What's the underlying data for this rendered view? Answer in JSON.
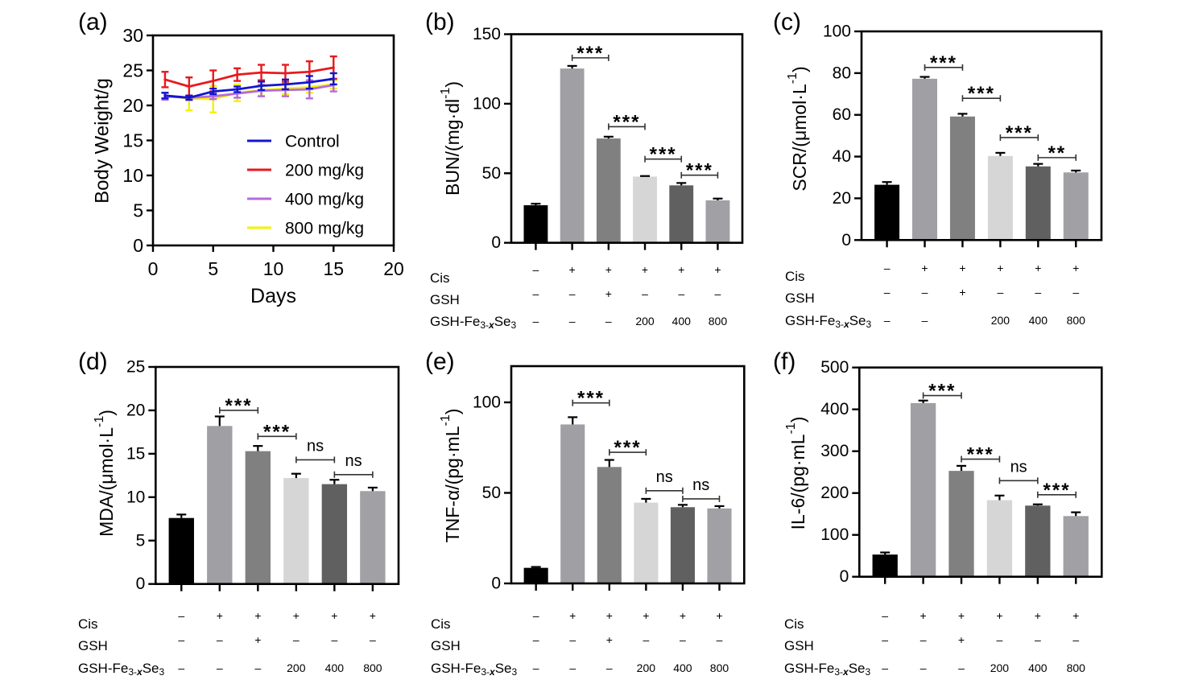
{
  "chart_data": [
    {
      "id": "a",
      "panel_label": "(a)",
      "type": "line",
      "title": "",
      "xlabel": "Days",
      "ylabel": "Body Weight/g",
      "xlim": [
        0,
        20
      ],
      "ylim": [
        0,
        30
      ],
      "xticks": [
        "0",
        "5",
        "10",
        "15",
        "20"
      ],
      "yticks": [
        "0",
        "5",
        "10",
        "15",
        "20",
        "25",
        "30"
      ],
      "grid": false,
      "legend": "center-right",
      "x": [
        1,
        3,
        5,
        7,
        9,
        11,
        13,
        15
      ],
      "series": [
        {
          "name": "Control",
          "color": "#1414d2",
          "values": [
            21.4,
            21.1,
            22.0,
            22.3,
            22.8,
            23.0,
            23.3,
            23.8
          ],
          "errors": [
            0.4,
            0.3,
            0.4,
            0.4,
            0.6,
            0.7,
            0.9,
            0.8
          ]
        },
        {
          "name": "200 mg/kg",
          "color": "#e8191f",
          "values": [
            23.7,
            22.7,
            23.5,
            24.4,
            24.7,
            24.6,
            24.8,
            25.4
          ],
          "errors": [
            1.1,
            1.3,
            1.5,
            0.9,
            1.1,
            1.2,
            1.5,
            1.6
          ]
        },
        {
          "name": "400 mg/kg",
          "color": "#b56bdb",
          "values": [
            21.3,
            21.1,
            21.3,
            21.7,
            22.1,
            22.2,
            22.3,
            22.9
          ],
          "errors": [
            0.5,
            0.3,
            0.4,
            0.6,
            0.8,
            0.9,
            1.3,
            0.9
          ]
        },
        {
          "name": "800 mg/kg",
          "color": "#f2f200",
          "values": [
            21.4,
            21.0,
            20.9,
            21.8,
            22.2,
            22.4,
            22.6,
            23.0
          ],
          "errors": [
            0.4,
            1.7,
            1.9,
            1.2,
            0.8,
            0.8,
            0.8,
            0.6
          ]
        }
      ]
    },
    {
      "id": "b",
      "panel_label": "(b)",
      "type": "bar",
      "ylabel": [
        {
          "t": "BUN/(mg·dl"
        },
        {
          "t": "-1",
          "sup": true
        },
        {
          "t": ")"
        }
      ],
      "ylim": [
        0,
        150
      ],
      "yticks": [
        "0",
        "50",
        "100",
        "150"
      ],
      "categories": [
        "–/–/–",
        "+/–/–",
        "+/+/–",
        "+/–/200",
        "+/–/400",
        "+/–/800"
      ],
      "values": [
        27.0,
        125.3,
        75.0,
        47.6,
        41.3,
        30.5
      ],
      "errors": [
        1.1,
        1.9,
        1.3,
        0.4,
        1.7,
        1.3
      ],
      "colors": [
        "#000000",
        "#9f9fa4",
        "#808080",
        "#d6d6d6",
        "#606060",
        "#a0a0a5"
      ],
      "significance": [
        {
          "from": 1,
          "to": 2,
          "y": 133,
          "label": "***"
        },
        {
          "from": 2,
          "to": 3,
          "y": 83.5,
          "label": "***"
        },
        {
          "from": 3,
          "to": 4,
          "y": 60.2,
          "label": "***"
        },
        {
          "from": 4,
          "to": 5,
          "y": 48.6,
          "label": "***"
        }
      ],
      "conditions": [
        {
          "label": [
            {
              "t": "Cis"
            }
          ],
          "values": [
            "–",
            "+",
            "+",
            "+",
            "+",
            "+"
          ]
        },
        {
          "label": [
            {
              "t": "GSH"
            }
          ],
          "values": [
            "–",
            "–",
            "+",
            "–",
            "–",
            "–"
          ]
        },
        {
          "label": [
            {
              "t": "GSH-Fe"
            },
            {
              "t": "3-",
              "sub": true
            },
            {
              "t": "x",
              "sub": true,
              "em": true
            },
            {
              "t": "Se"
            },
            {
              "t": "3",
              "sub": true
            }
          ],
          "values": [
            "–",
            "–",
            "–",
            "200",
            "400",
            "800"
          ]
        }
      ]
    },
    {
      "id": "c",
      "panel_label": "(c)",
      "type": "bar",
      "ylabel": [
        {
          "t": "SCR/(μmol·L"
        },
        {
          "t": "-1",
          "sup": true
        },
        {
          "t": ")"
        }
      ],
      "ylim": [
        0,
        100
      ],
      "yticks": [
        "0",
        "20",
        "40",
        "60",
        "80",
        "100"
      ],
      "categories": [
        "–/–/–",
        "+/–/–",
        "+/+/",
        "+/–/200",
        "+/–/400",
        "+/–/800"
      ],
      "values": [
        26.5,
        77.3,
        59.2,
        40.3,
        35.3,
        32.4
      ],
      "errors": [
        1.3,
        0.9,
        1.3,
        1.5,
        1.2,
        0.9
      ],
      "colors": [
        "#000000",
        "#9f9fa4",
        "#808080",
        "#d6d6d6",
        "#606060",
        "#a0a0a5"
      ],
      "significance": [
        {
          "from": 1,
          "to": 2,
          "y": 82.7,
          "label": "***"
        },
        {
          "from": 2,
          "to": 3,
          "y": 67.9,
          "label": "***"
        },
        {
          "from": 3,
          "to": 4,
          "y": 49.1,
          "label": "***"
        },
        {
          "from": 4,
          "to": 5,
          "y": 39.5,
          "label": "**"
        }
      ],
      "conditions": [
        {
          "label": [
            {
              "t": "Cis"
            }
          ],
          "values": [
            "–",
            "+",
            "+",
            "+",
            "+",
            "+"
          ]
        },
        {
          "label": [
            {
              "t": "GSH"
            }
          ],
          "values": [
            "–",
            "–",
            "+",
            "–",
            "–",
            "–"
          ]
        },
        {
          "label": [
            {
              "t": "GSH-Fe"
            },
            {
              "t": "3-",
              "sub": true
            },
            {
              "t": "x",
              "sub": true,
              "em": true
            },
            {
              "t": "Se"
            },
            {
              "t": "3",
              "sub": true
            }
          ],
          "values": [
            "–",
            "–",
            "",
            "200",
            "400",
            "800"
          ]
        }
      ]
    },
    {
      "id": "d",
      "panel_label": "(d)",
      "type": "bar",
      "ylabel": [
        {
          "t": "MDA/(μmol·L"
        },
        {
          "t": "-1",
          "sup": true
        },
        {
          "t": ")"
        }
      ],
      "ylim": [
        0,
        25
      ],
      "yticks": [
        "0",
        "5",
        "10",
        "15",
        "20",
        "25"
      ],
      "categories": [
        "–/–/–",
        "+/–/–",
        "+/+/–",
        "+/–/200",
        "+/–/400",
        "+/–/800"
      ],
      "values": [
        7.6,
        18.2,
        15.3,
        12.2,
        11.5,
        10.7
      ],
      "errors": [
        0.4,
        1.1,
        0.6,
        0.5,
        0.5,
        0.4
      ],
      "colors": [
        "#000000",
        "#9f9fa4",
        "#808080",
        "#d6d6d6",
        "#606060",
        "#a0a0a5"
      ],
      "significance": [
        {
          "from": 1,
          "to": 2,
          "y": 20.0,
          "label": "***"
        },
        {
          "from": 2,
          "to": 3,
          "y": 17.0,
          "label": "***"
        },
        {
          "from": 3,
          "to": 4,
          "y": 14.3,
          "label": "ns"
        },
        {
          "from": 4,
          "to": 5,
          "y": 12.6,
          "label": "ns"
        }
      ],
      "conditions": [
        {
          "label": [
            {
              "t": "Cis"
            }
          ],
          "values": [
            "–",
            "+",
            "+",
            "+",
            "+",
            "+"
          ]
        },
        {
          "label": [
            {
              "t": "GSH"
            }
          ],
          "values": [
            "–",
            "–",
            "+",
            "–",
            "–",
            "–"
          ]
        },
        {
          "label": [
            {
              "t": "GSH-Fe"
            },
            {
              "t": "3-",
              "sub": true
            },
            {
              "t": "x",
              "sub": true,
              "em": true
            },
            {
              "t": "Se"
            },
            {
              "t": "3",
              "sub": true
            }
          ],
          "values": [
            "–",
            "–",
            "–",
            "200",
            "400",
            "800"
          ]
        }
      ]
    },
    {
      "id": "e",
      "panel_label": "(e)",
      "type": "bar",
      "ylabel": [
        {
          "t": "TNF-α/(pg·mL"
        },
        {
          "t": "-1",
          "sup": true
        },
        {
          "t": ")"
        }
      ],
      "ylim": [
        0,
        120
      ],
      "yticks": [
        "0",
        "50",
        "100"
      ],
      "categories": [
        "–/–/–",
        "+/–/–",
        "+/+/–",
        "+/–/200",
        "+/–/400",
        "+/–/800"
      ],
      "values": [
        8.6,
        87.8,
        64.3,
        44.6,
        42.1,
        41.4
      ],
      "errors": [
        0.5,
        4.0,
        3.9,
        2.1,
        1.3,
        1.3
      ],
      "colors": [
        "#000000",
        "#9f9fa4",
        "#808080",
        "#d6d6d6",
        "#606060",
        "#a0a0a5"
      ],
      "significance": [
        {
          "from": 1,
          "to": 2,
          "y": 99.7,
          "label": "***"
        },
        {
          "from": 2,
          "to": 3,
          "y": 72.4,
          "label": "***"
        },
        {
          "from": 3,
          "to": 4,
          "y": 51.2,
          "label": "ns"
        },
        {
          "from": 4,
          "to": 5,
          "y": 46.7,
          "label": "ns"
        }
      ],
      "conditions": [
        {
          "label": [
            {
              "t": "Cis"
            }
          ],
          "values": [
            "–",
            "+",
            "+",
            "+",
            "+",
            "+"
          ]
        },
        {
          "label": [
            {
              "t": "GSH"
            }
          ],
          "values": [
            "–",
            "–",
            "+",
            "–",
            "–",
            "–"
          ]
        },
        {
          "label": [
            {
              "t": "GSH-Fe"
            },
            {
              "t": "3-",
              "sub": true
            },
            {
              "t": "x",
              "sub": true,
              "em": true
            },
            {
              "t": "Se"
            },
            {
              "t": "3",
              "sub": true
            }
          ],
          "values": [
            "–",
            "–",
            "–",
            "200",
            "400",
            "800"
          ]
        }
      ]
    },
    {
      "id": "f",
      "panel_label": "(f)",
      "type": "bar",
      "ylabel": [
        {
          "t": "IL-6/(pg·mL"
        },
        {
          "t": "-1",
          "sup": true
        },
        {
          "t": ")"
        }
      ],
      "ylim": [
        0,
        500
      ],
      "yticks": [
        "0",
        "100",
        "200",
        "300",
        "400",
        "500"
      ],
      "categories": [
        "–/–/–",
        "+/–/–",
        "+/+/–",
        "+/–/200",
        "+/–/400",
        "+/–/800"
      ],
      "values": [
        53,
        415,
        253,
        183,
        170,
        145
      ],
      "errors": [
        5,
        6,
        12,
        11,
        3,
        9
      ],
      "colors": [
        "#000000",
        "#9f9fa4",
        "#808080",
        "#d6d6d6",
        "#606060",
        "#a0a0a5"
      ],
      "significance": [
        {
          "from": 1,
          "to": 2,
          "y": 433,
          "label": "***"
        },
        {
          "from": 2,
          "to": 3,
          "y": 281,
          "label": "***"
        },
        {
          "from": 3,
          "to": 4,
          "y": 229.5,
          "label": "ns"
        },
        {
          "from": 4,
          "to": 5,
          "y": 196,
          "label": "***"
        }
      ],
      "conditions": [
        {
          "label": [
            {
              "t": "Cis"
            }
          ],
          "values": [
            "–",
            "+",
            "+",
            "+",
            "+",
            "+"
          ]
        },
        {
          "label": [
            {
              "t": "GSH"
            }
          ],
          "values": [
            "–",
            "–",
            "+",
            "–",
            "–",
            "–"
          ]
        },
        {
          "label": [
            {
              "t": "GSH-Fe"
            },
            {
              "t": "3-",
              "sub": true
            },
            {
              "t": "x",
              "sub": true,
              "em": true
            },
            {
              "t": "Se"
            },
            {
              "t": "3",
              "sub": true
            }
          ],
          "values": [
            "–",
            "–",
            "–",
            "200",
            "400",
            "800"
          ]
        }
      ]
    }
  ]
}
